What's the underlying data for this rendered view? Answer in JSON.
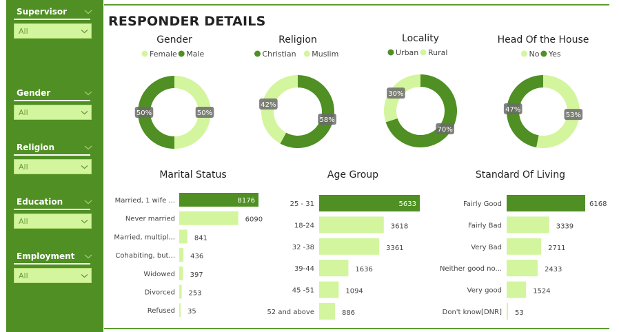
{
  "page_title": "RESPONDER DETAILS",
  "colors": {
    "dark": "#4f8f23",
    "light": "#d3f59e",
    "sidebar": "#4f8f23",
    "text": "#333333"
  },
  "filters": [
    {
      "label": "Supervisor",
      "value": "All"
    },
    {
      "label": "Gender",
      "value": "All"
    },
    {
      "label": "Religion",
      "value": "All"
    },
    {
      "label": "Education",
      "value": "All"
    },
    {
      "label": "Employment",
      "value": "All"
    }
  ],
  "chart_data": [
    {
      "type": "pie",
      "title": "Gender",
      "donut": true,
      "legend": [
        "Female",
        "Male"
      ],
      "slices": [
        {
          "label": "Female",
          "value": 50,
          "color": "light"
        },
        {
          "label": "Male",
          "value": 50,
          "color": "dark"
        }
      ]
    },
    {
      "type": "pie",
      "title": "Religion",
      "donut": true,
      "legend": [
        "Christian",
        "Muslim"
      ],
      "slices": [
        {
          "label": "Christian",
          "value": 58,
          "color": "dark"
        },
        {
          "label": "Muslim",
          "value": 42,
          "color": "light"
        }
      ]
    },
    {
      "type": "pie",
      "title": "Locality",
      "donut": true,
      "legend": [
        "Urban",
        "Rural"
      ],
      "slices": [
        {
          "label": "Urban",
          "value": 70,
          "color": "dark"
        },
        {
          "label": "Rural",
          "value": 30,
          "color": "light"
        }
      ]
    },
    {
      "type": "pie",
      "title": "Head Of the House",
      "donut": true,
      "legend": [
        "No",
        "Yes"
      ],
      "slices": [
        {
          "label": "No",
          "value": 53,
          "color": "light"
        },
        {
          "label": "Yes",
          "value": 47,
          "color": "dark"
        }
      ]
    },
    {
      "type": "bar",
      "orientation": "horizontal",
      "title": "Marital Status",
      "categories": [
        "Married, 1 wife ...",
        "Never married",
        "Married, multipl...",
        "Cohabiting, but...",
        "Widowed",
        "Divorced",
        "Refused"
      ],
      "values": [
        8176,
        6090,
        841,
        436,
        397,
        253,
        35
      ],
      "highlight_index": 0
    },
    {
      "type": "bar",
      "orientation": "horizontal",
      "title": "Age Group",
      "categories": [
        "25 - 31",
        "18-24",
        "32 -38",
        "39-44",
        "45 -51",
        "52 and above"
      ],
      "values": [
        5633,
        3618,
        3361,
        1636,
        1094,
        886
      ],
      "highlight_index": 0
    },
    {
      "type": "bar",
      "orientation": "horizontal",
      "title": "Standard Of Living",
      "categories": [
        "Fairly Good",
        "Fairly Bad",
        "Very Bad",
        "Neither good no...",
        "Very good",
        "Don't know[DNR]"
      ],
      "values": [
        6168,
        3339,
        2711,
        2433,
        1524,
        53
      ],
      "highlight_index": 0
    }
  ]
}
